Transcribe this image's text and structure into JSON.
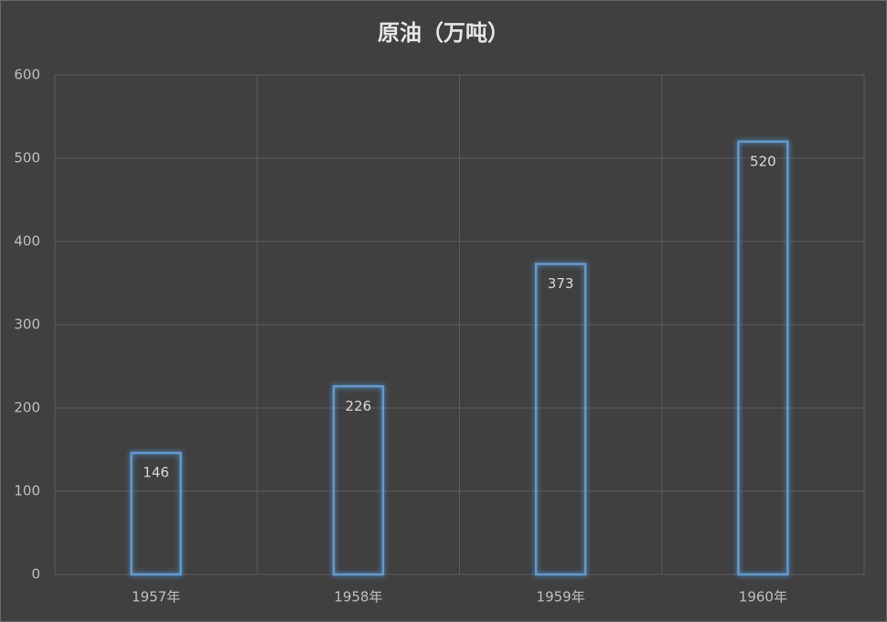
{
  "chart_data": {
    "type": "bar",
    "title": "原油（万吨）",
    "categories": [
      "1957年",
      "1958年",
      "1959年",
      "1960年"
    ],
    "values": [
      146,
      226,
      373,
      520
    ],
    "color": "#5b9bd5",
    "ylim": [
      0,
      600
    ],
    "yticks": [
      0,
      100,
      200,
      300,
      400,
      500,
      600
    ],
    "grid": true
  }
}
